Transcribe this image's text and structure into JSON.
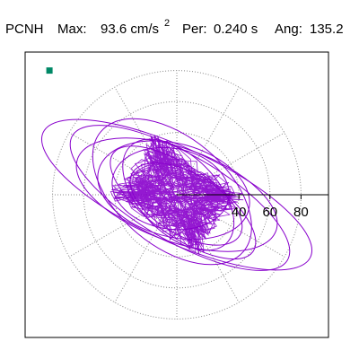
{
  "header": {
    "station": "PCNH",
    "max_label": "Max:",
    "max_value": "93.6 cm/s",
    "max_exp": "2",
    "per_label": "Per:",
    "per_value": "0.240 s",
    "ang_label": "Ang:",
    "ang_value": "135.2"
  },
  "colors": {
    "trace": "#8800cc",
    "start_marker": "#008866",
    "grid": "#888888",
    "frame": "#000000"
  },
  "chart_data": {
    "type": "scatter",
    "description_mode": "polar-orbit",
    "radial_ticks": [
      40,
      60,
      80
    ],
    "radial_circles": [
      20,
      40,
      60,
      80
    ],
    "spoke_angles_deg": [
      0,
      30,
      60,
      90,
      120,
      150,
      180,
      210,
      240,
      270,
      300,
      330
    ],
    "r_max": 93.6,
    "peak_angle_deg": 135.2,
    "orbit_ellipses": [
      {
        "center": [
          0,
          0
        ],
        "semi_major": 95,
        "semi_minor": 30,
        "angle_deg": -25
      },
      {
        "center": [
          2,
          -2
        ],
        "semi_major": 80,
        "semi_minor": 28,
        "angle_deg": -30
      },
      {
        "center": [
          0,
          0
        ],
        "semi_major": 68,
        "semi_minor": 30,
        "angle_deg": -20
      },
      {
        "center": [
          -3,
          2
        ],
        "semi_major": 60,
        "semi_minor": 35,
        "angle_deg": -40
      },
      {
        "center": [
          4,
          -5
        ],
        "semi_major": 55,
        "semi_minor": 22,
        "angle_deg": -35
      },
      {
        "center": [
          -2,
          3
        ],
        "semi_major": 50,
        "semi_minor": 30,
        "angle_deg": -15
      },
      {
        "center": [
          1,
          0
        ],
        "semi_major": 44,
        "semi_minor": 25,
        "angle_deg": -45
      },
      {
        "center": [
          6,
          -6
        ],
        "semi_major": 40,
        "semi_minor": 20,
        "angle_deg": -30
      },
      {
        "center": [
          -4,
          4
        ],
        "semi_major": 38,
        "semi_minor": 26,
        "angle_deg": -10
      }
    ],
    "start_point": [
      -82,
      80
    ]
  }
}
